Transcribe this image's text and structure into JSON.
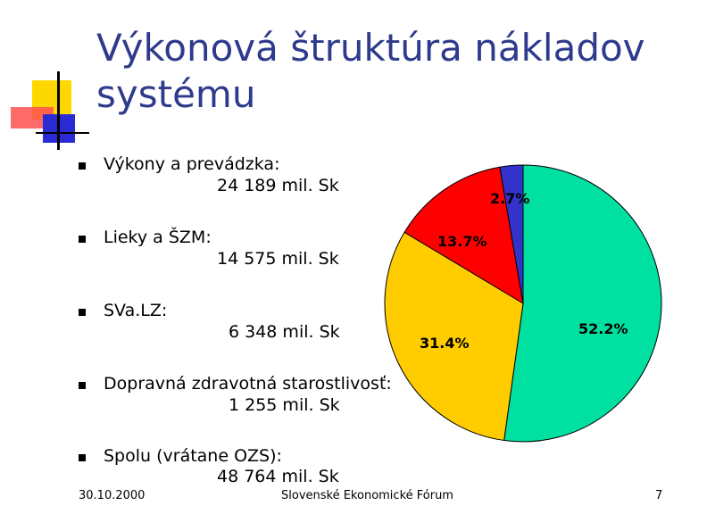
{
  "slide": {
    "title_line1": "Výkonová štruktúra nákladov",
    "title_line2": "systému"
  },
  "bullets": [
    {
      "label": "Výkony a prevádzka:",
      "value": "24 189 mil. Sk"
    },
    {
      "label": "Lieky a ŠZM:",
      "value": "14 575 mil. Sk"
    },
    {
      "label": "SVa.LZ:",
      "value": "6 348 mil. Sk"
    },
    {
      "label": "Dopravná zdravotná starostlivosť:",
      "value": "1 255 mil. Sk"
    },
    {
      "label": "Spolu (vrátane OZS):",
      "value": "48 764 mil. Sk"
    }
  ],
  "footer": {
    "date": "30.10.2000",
    "organization": "Slovenské Ekonomické Fórum",
    "page": "7"
  },
  "chart_data": {
    "type": "pie",
    "title": "",
    "slices": [
      {
        "label": "52.2%",
        "value": 52.2,
        "color": "#00e0a0"
      },
      {
        "label": "31.4%",
        "value": 31.4,
        "color": "#ffcc00"
      },
      {
        "label": "13.7%",
        "value": 13.7,
        "color": "#ff0000"
      },
      {
        "label": "2.7%",
        "value": 2.7,
        "color": "#3333cc"
      }
    ]
  }
}
